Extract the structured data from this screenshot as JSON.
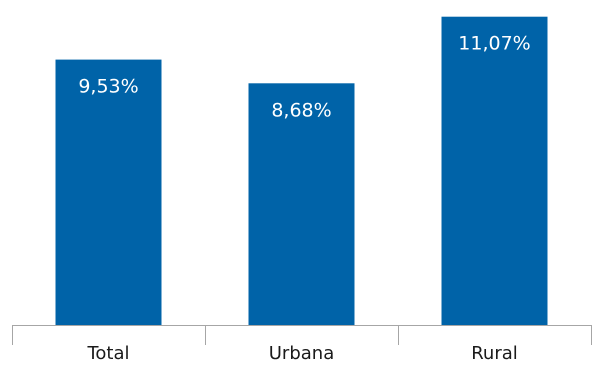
{
  "chart_data": {
    "type": "bar",
    "categories": [
      "Total",
      "Urbana",
      "Rural"
    ],
    "values": [
      9.53,
      8.68,
      11.07
    ],
    "value_labels": [
      "9,53%",
      "8,68%",
      "11,07%"
    ],
    "title": "",
    "xlabel": "",
    "ylabel": "",
    "ylim": [
      0,
      11.67
    ],
    "grid": false,
    "legend": "none",
    "bar_color": "#0063A8",
    "label_color": "#ffffff",
    "axis_color": "#a6a6a6",
    "text_color": "#1a1a1a"
  }
}
